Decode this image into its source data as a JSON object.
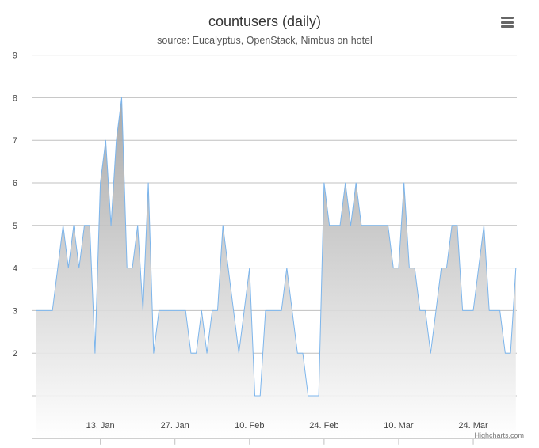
{
  "header": {
    "title": "countusers (daily)",
    "subtitle": "source: Eucalyptus, OpenStack, Nimbus on hotel"
  },
  "credits": "Highcharts.com",
  "menu": {
    "icon": "hamburger-menu-icon"
  },
  "colors": {
    "line": "#7cb5ec",
    "fill_top": "#a0a0a0",
    "fill_bottom": "#ffffff",
    "grid": "#c0c0c0",
    "text": "#333333",
    "axis_text": "#444444"
  },
  "chart_data": {
    "type": "area",
    "title": "countusers (daily)",
    "subtitle": "source: Eucalyptus, OpenStack, Nimbus on hotel",
    "xlabel": "",
    "ylabel": "",
    "x_unit": "day",
    "x_start": "2013-12-31",
    "ylim": [
      0,
      9.4
    ],
    "yticks": [
      2,
      3,
      4,
      5,
      6,
      7,
      8,
      9
    ],
    "xticks": [
      {
        "label": "13. Jan",
        "day": 13
      },
      {
        "label": "27. Jan",
        "day": 27
      },
      {
        "label": "10. Feb",
        "day": 41
      },
      {
        "label": "24. Feb",
        "day": 55
      },
      {
        "label": "10. Mar",
        "day": 69
      },
      {
        "label": "24. Mar",
        "day": 83
      }
    ],
    "grid": true,
    "legend": "none",
    "series": [
      {
        "values": [
          3,
          3,
          3,
          3,
          4,
          5,
          4,
          5,
          4,
          5,
          5,
          2,
          6,
          7,
          5,
          7,
          8,
          4,
          4,
          5,
          3,
          6,
          2,
          3,
          3,
          3,
          3,
          3,
          3,
          2,
          2,
          3,
          2,
          3,
          3,
          5,
          4,
          3,
          2,
          3,
          4,
          1,
          1,
          3,
          3,
          3,
          3,
          4,
          3,
          2,
          2,
          1,
          1,
          1,
          6,
          5,
          5,
          5,
          6,
          5,
          6,
          5,
          5,
          5,
          5,
          5,
          5,
          4,
          4,
          6,
          4,
          4,
          3,
          3,
          2,
          3,
          4,
          4,
          5,
          5,
          3,
          3,
          3,
          4,
          5,
          3,
          3,
          3,
          2,
          2,
          4
        ]
      }
    ]
  }
}
